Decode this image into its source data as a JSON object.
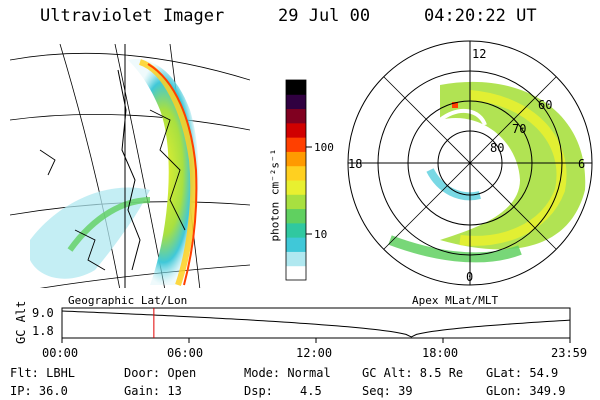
{
  "header": {
    "title": "Ultraviolet Imager",
    "date": "29 Jul 00",
    "time": "04:20:22 UT"
  },
  "left_panel": {
    "caption": "Geographic Lat/Lon"
  },
  "colorbar": {
    "unit_label": "photon cm⁻²s⁻¹",
    "ticks": [
      "100",
      "10"
    ],
    "colors": [
      "#ffffff",
      "#b0e8f0",
      "#40c8d8",
      "#30c8a0",
      "#60d060",
      "#a8e040",
      "#e8f030",
      "#ffd020",
      "#ff9a00",
      "#ff4000",
      "#d00000",
      "#800020",
      "#300040",
      "#000000"
    ]
  },
  "right_panel": {
    "caption": "Apex MLat/MLT",
    "mlt_labels": {
      "top": "12",
      "left": "18",
      "right": "6",
      "bottom": "0"
    },
    "lat_labels": [
      "60",
      "70",
      "80"
    ]
  },
  "timeline": {
    "ylabel": "GC Alt",
    "ytick_top": "9.0",
    "ytick_bottom": "1.8",
    "xticks": [
      "00:00",
      "06:00",
      "12:00",
      "18:00",
      "23:59"
    ],
    "marker_time_hours": 4.34,
    "marker_color": "#e00000"
  },
  "info": {
    "flt": "Flt: LBHL",
    "ip": "IP: 36.0",
    "door": "Door: Open",
    "gain": "Gain: 13",
    "mode": "Mode: Normal",
    "dsp_label": "Dsp:",
    "dsp_value": "4.5",
    "gc_alt": "GC Alt: 8.5 Re",
    "seq": "Seq: 39",
    "glat": "GLat:  54.9",
    "glon": "GLon: 349.9"
  }
}
